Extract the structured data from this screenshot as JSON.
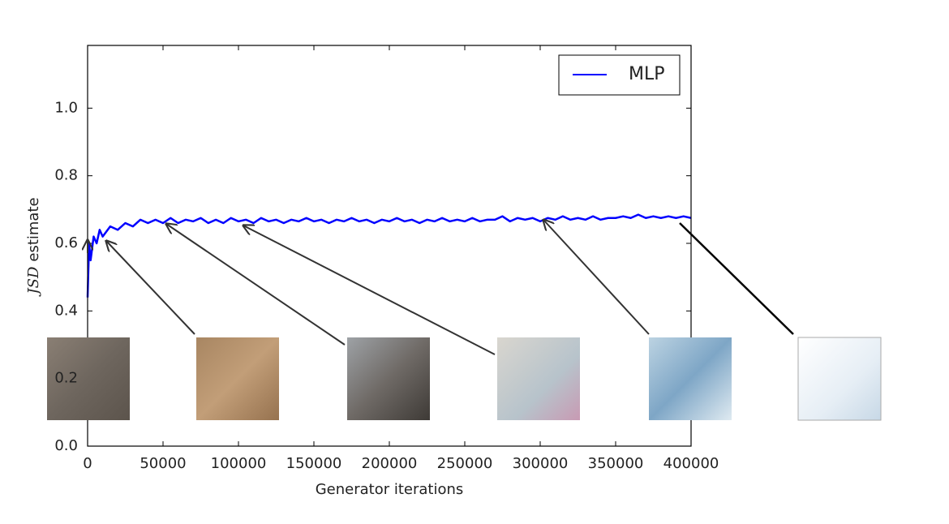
{
  "chart_data": {
    "type": "line",
    "xlabel": "Generator iterations",
    "ylabel": [
      "JSD",
      "estimate"
    ],
    "x": [
      0,
      1000,
      2000,
      4000,
      6000,
      8000,
      10000,
      15000,
      20000,
      25000,
      30000,
      35000,
      40000,
      45000,
      50000,
      55000,
      60000,
      65000,
      70000,
      75000,
      80000,
      85000,
      90000,
      95000,
      100000,
      105000,
      110000,
      115000,
      120000,
      125000,
      130000,
      135000,
      140000,
      145000,
      150000,
      155000,
      160000,
      165000,
      170000,
      175000,
      180000,
      185000,
      190000,
      195000,
      200000,
      205000,
      210000,
      215000,
      220000,
      225000,
      230000,
      235000,
      240000,
      245000,
      250000,
      255000,
      260000,
      265000,
      270000,
      275000,
      280000,
      285000,
      290000,
      295000,
      300000,
      305000,
      310000,
      315000,
      320000,
      325000,
      330000,
      335000,
      340000,
      345000,
      350000,
      355000,
      360000,
      365000,
      370000,
      375000,
      380000,
      385000,
      390000,
      395000,
      400000
    ],
    "series": [
      {
        "name": "MLP",
        "color": "#0000ff",
        "values": [
          0.44,
          0.6,
          0.55,
          0.62,
          0.6,
          0.64,
          0.62,
          0.65,
          0.64,
          0.66,
          0.65,
          0.67,
          0.66,
          0.67,
          0.66,
          0.675,
          0.66,
          0.67,
          0.665,
          0.675,
          0.66,
          0.67,
          0.66,
          0.675,
          0.665,
          0.67,
          0.66,
          0.675,
          0.665,
          0.67,
          0.66,
          0.67,
          0.665,
          0.675,
          0.665,
          0.67,
          0.66,
          0.67,
          0.665,
          0.675,
          0.665,
          0.67,
          0.66,
          0.67,
          0.665,
          0.675,
          0.665,
          0.67,
          0.66,
          0.67,
          0.665,
          0.675,
          0.665,
          0.67,
          0.665,
          0.675,
          0.665,
          0.67,
          0.67,
          0.68,
          0.665,
          0.675,
          0.67,
          0.675,
          0.665,
          0.675,
          0.67,
          0.68,
          0.67,
          0.675,
          0.67,
          0.68,
          0.67,
          0.675,
          0.675,
          0.68,
          0.675,
          0.685,
          0.675,
          0.68,
          0.675,
          0.68,
          0.675,
          0.68,
          0.675
        ]
      }
    ],
    "xlim": [
      0,
      400000
    ],
    "xticks": [
      0,
      50000,
      100000,
      150000,
      200000,
      250000,
      300000,
      350000,
      400000
    ],
    "ylim": [
      0,
      1.2
    ],
    "yticks": [
      {
        "value": 0,
        "label": "0.0"
      },
      0.2,
      0.4,
      0.6,
      0.8,
      {
        "value": 1,
        "label": "1.0"
      }
    ],
    "legend": "upper right"
  }
}
